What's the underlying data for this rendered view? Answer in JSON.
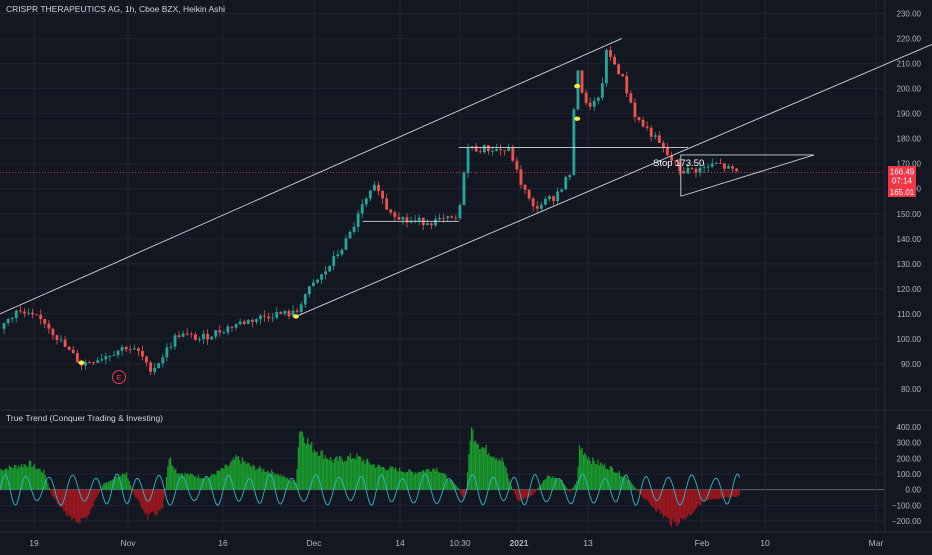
{
  "header": {
    "title": "CRISPR THERAPEUTICS AG, 1h, Cboe BZX, Heikin Ashi"
  },
  "indicator": {
    "title": "True Trend (Conquer Trading & Investing)"
  },
  "colors": {
    "background": "#131722",
    "up": "#26a69a",
    "down": "#ef5350",
    "grid": "#1f2533",
    "axis_text": "#b2b5be",
    "trendline": "#d1d4dc",
    "hist_pos": "#1b9e2e",
    "hist_neg": "#a3171f",
    "oscillator": "#2fb9c8",
    "price_tag": "#f23645",
    "signal_dot": "#f5e94a"
  },
  "price_axis": {
    "ticks": [
      "230.00",
      "220.00",
      "210.00",
      "200.00",
      "190.00",
      "180.00",
      "170.00",
      "160.00",
      "150.00",
      "140.00",
      "130.00",
      "120.00",
      "110.00",
      "100.00",
      "90.00",
      "80.00"
    ]
  },
  "price_tags": {
    "last": "166.49",
    "countdown": "07:14",
    "low": "165.01"
  },
  "indicator_axis": {
    "ticks": [
      "400.00",
      "300.00",
      "200.00",
      "100.00",
      "0.00",
      "−100.00",
      "−200.00"
    ]
  },
  "time_axis": {
    "labels": [
      "19",
      "Nov",
      "16",
      "Dec",
      "14",
      "10:30",
      "2021",
      "13",
      "Feb",
      "10",
      "Mar"
    ],
    "bold": [
      "2021"
    ]
  },
  "annotation": {
    "text": "Stop 173.50"
  },
  "earnings_marker": {
    "text": "E"
  },
  "chart_data": {
    "type": "candlestick",
    "title": "CRISPR THERAPEUTICS AG, 1h, Cboe BZX, Heikin Ashi",
    "ylim": [
      75,
      234
    ],
    "price_path": [
      [
        0,
        104
      ],
      [
        2,
        111
      ],
      [
        6,
        107
      ],
      [
        9,
        96
      ],
      [
        11,
        90
      ],
      [
        14,
        93
      ],
      [
        17,
        97
      ],
      [
        19,
        94
      ],
      [
        20,
        88
      ],
      [
        21,
        89
      ],
      [
        24,
        102
      ],
      [
        27,
        100
      ],
      [
        32,
        106
      ],
      [
        37,
        110
      ],
      [
        40,
        110
      ],
      [
        41,
        117
      ],
      [
        44,
        127
      ],
      [
        47,
        140
      ],
      [
        49,
        153
      ],
      [
        51,
        162
      ],
      [
        52,
        153
      ],
      [
        55,
        147
      ],
      [
        59,
        147
      ],
      [
        62,
        148
      ],
      [
        63,
        176
      ],
      [
        66,
        176
      ],
      [
        69,
        175
      ],
      [
        70,
        165
      ],
      [
        72,
        152
      ],
      [
        75,
        157
      ],
      [
        77,
        166
      ],
      [
        78,
        210
      ],
      [
        79,
        193
      ],
      [
        81,
        195
      ],
      [
        82,
        215
      ],
      [
        84,
        205
      ],
      [
        86,
        188
      ],
      [
        88,
        182
      ],
      [
        90,
        174
      ],
      [
        92,
        167
      ],
      [
        95,
        168
      ],
      [
        97,
        170
      ],
      [
        99,
        167
      ],
      [
        100,
        166.5
      ]
    ],
    "trend_lines": [
      {
        "name": "upper channel",
        "points": [
          [
            0,
            110
          ],
          [
            84,
            220
          ]
        ]
      },
      {
        "name": "lower channel",
        "points": [
          [
            40,
            109
          ],
          [
            127,
            219
          ]
        ]
      },
      {
        "name": "resistance",
        "points": [
          [
            62,
            176.5
          ],
          [
            93,
            176.5
          ]
        ]
      },
      {
        "name": "support",
        "points": [
          [
            49,
            147
          ],
          [
            62,
            147
          ]
        ]
      },
      {
        "name": "triangle top",
        "points": [
          [
            92,
            173.5
          ],
          [
            110,
            173.5
          ]
        ]
      },
      {
        "name": "triangle bottom",
        "points": [
          [
            92,
            157
          ],
          [
            110,
            173.5
          ]
        ]
      },
      {
        "name": "triangle left",
        "points": [
          [
            92,
            157
          ],
          [
            92,
            173.5
          ]
        ]
      }
    ],
    "signal_dots": [
      [
        11,
        90.5
      ],
      [
        40,
        109
      ],
      [
        78,
        201
      ],
      [
        78,
        188
      ]
    ],
    "indicator": {
      "ylim": [
        -270,
        500
      ],
      "histogram_envelope": [
        [
          0,
          140
        ],
        [
          4,
          180
        ],
        [
          6,
          120
        ],
        [
          7,
          -40
        ],
        [
          10,
          -230
        ],
        [
          12,
          -180
        ],
        [
          13,
          -60
        ],
        [
          14,
          40
        ],
        [
          17,
          120
        ],
        [
          18,
          -20
        ],
        [
          20,
          -190
        ],
        [
          22,
          -140
        ],
        [
          22.8,
          230
        ],
        [
          24,
          120
        ],
        [
          28,
          80
        ],
        [
          31,
          170
        ],
        [
          32,
          220
        ],
        [
          34,
          160
        ],
        [
          37,
          120
        ],
        [
          40,
          50
        ],
        [
          40.5,
          430
        ],
        [
          42,
          300
        ],
        [
          45,
          200
        ],
        [
          48,
          230
        ],
        [
          51,
          160
        ],
        [
          56,
          120
        ],
        [
          59,
          150
        ],
        [
          61,
          60
        ],
        [
          62,
          10
        ],
        [
          62.5,
          -60
        ],
        [
          63,
          -30
        ],
        [
          63.6,
          420
        ],
        [
          65,
          300
        ],
        [
          68,
          200
        ],
        [
          69,
          40
        ],
        [
          70,
          -80
        ],
        [
          72,
          -40
        ],
        [
          74,
          100
        ],
        [
          76,
          60
        ],
        [
          77,
          -20
        ],
        [
          78,
          60
        ],
        [
          78.3,
          300
        ],
        [
          80,
          200
        ],
        [
          83,
          140
        ],
        [
          85,
          70
        ],
        [
          87,
          -60
        ],
        [
          89,
          -150
        ],
        [
          91,
          -240
        ],
        [
          93,
          -180
        ],
        [
          95,
          -80
        ],
        [
          98,
          -60
        ],
        [
          100,
          -40
        ]
      ]
    }
  }
}
